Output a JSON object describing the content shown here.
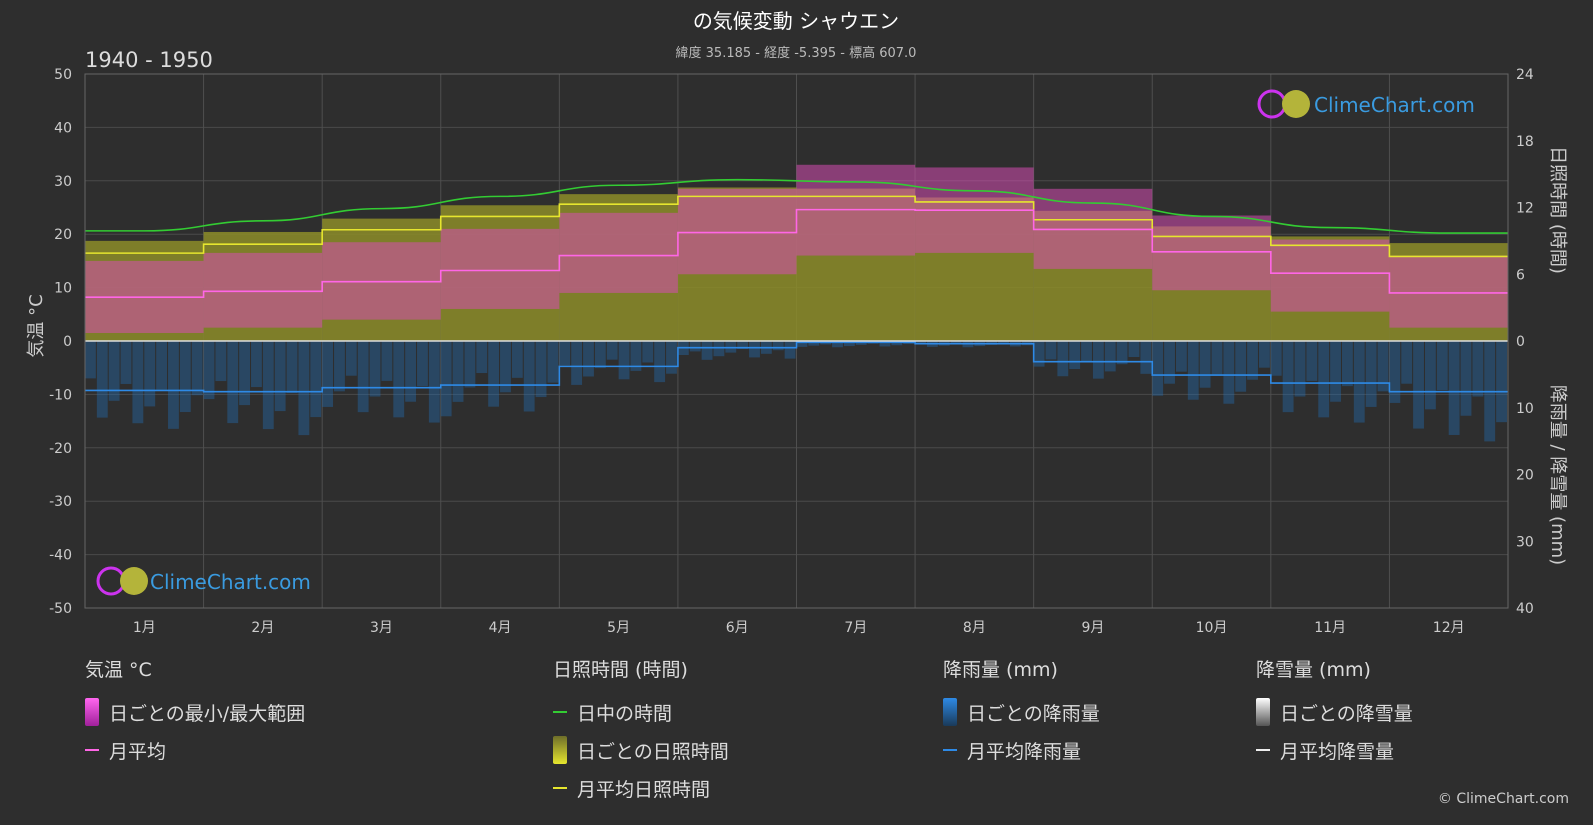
{
  "title": "の気候変動 シャウエン",
  "subtitle": "緯度 35.185 - 経度 -5.395 - 標高 607.0",
  "period": "1940 - 1950",
  "brand": "ClimeChart.com",
  "copyright": "© ClimeChart.com",
  "axes": {
    "left_label": "気温 °C",
    "right_top_label": "日照時間 (時間)",
    "right_bottom_label": "降雨量 / 降雪量 (mm)",
    "temp_ticks": [
      "50",
      "40",
      "30",
      "20",
      "10",
      "0",
      "-10",
      "-20",
      "-30",
      "-40",
      "-50"
    ],
    "sun_ticks": [
      "24",
      "18",
      "12",
      "6",
      "0"
    ],
    "precip_ticks": [
      "10",
      "20",
      "30",
      "40"
    ]
  },
  "colors": {
    "background": "#2e2e2e",
    "daylight": "#33cc33",
    "sunshine_line": "#e6e62e",
    "sunshine_fill": "#8c8c28",
    "temp_range": "#d64db3",
    "temp_mean": "#ff66e6",
    "rain": "#1f75c7",
    "rain_line": "#2e8ae6",
    "snow": "#cccccc",
    "brand": "#3a9be0"
  },
  "legend": {
    "temperature": {
      "title": "気温 °C",
      "items": [
        {
          "label": "日ごとの最小/最大範囲",
          "kind": "box",
          "color": "#e040d0"
        },
        {
          "label": "月平均",
          "kind": "line",
          "color": "#ff66e6"
        }
      ]
    },
    "sunshine": {
      "title": "日照時間 (時間)",
      "items": [
        {
          "label": "日中の時間",
          "kind": "line",
          "color": "#33cc33"
        },
        {
          "label": "日ごとの日照時間",
          "kind": "box",
          "color": "#c8c83a"
        },
        {
          "label": "月平均日照時間",
          "kind": "line",
          "color": "#e6e62e"
        }
      ]
    },
    "rain": {
      "title": "降雨量 (mm)",
      "items": [
        {
          "label": "日ごとの降雨量",
          "kind": "box",
          "color": "#2e8ae6"
        },
        {
          "label": "月平均降雨量",
          "kind": "line",
          "color": "#2e8ae6"
        }
      ]
    },
    "snow": {
      "title": "降雪量 (mm)",
      "items": [
        {
          "label": "日ごとの降雪量",
          "kind": "box",
          "color": "#dddddd"
        },
        {
          "label": "月平均降雪量",
          "kind": "line",
          "color": "#eeeeee"
        }
      ]
    }
  },
  "chart_data": {
    "type": "area",
    "title": "の気候変動 シャウエン",
    "subtitle": "緯度 35.185 - 経度 -5.395 - 標高 607.0",
    "categories": [
      "1月",
      "2月",
      "3月",
      "4月",
      "5月",
      "6月",
      "7月",
      "8月",
      "9月",
      "10月",
      "11月",
      "12月"
    ],
    "temp_ylim": [
      -50,
      50
    ],
    "sun_ylim": [
      0,
      24
    ],
    "precip_ylim": [
      0,
      40
    ],
    "grid": true,
    "series": [
      {
        "name": "日中の時間",
        "axis": "sun",
        "values": [
          9.9,
          10.8,
          11.9,
          13.0,
          14.0,
          14.5,
          14.3,
          13.5,
          12.4,
          11.2,
          10.2,
          9.7
        ]
      },
      {
        "name": "月平均日照時間",
        "axis": "sun",
        "values": [
          7.9,
          8.7,
          10.0,
          11.2,
          12.3,
          13.0,
          13.0,
          12.5,
          10.9,
          9.4,
          8.6,
          7.6
        ]
      },
      {
        "name": "日ごとの日照時間",
        "axis": "sun",
        "values": [
          9.0,
          9.8,
          11.0,
          12.2,
          13.2,
          13.8,
          13.7,
          12.9,
          11.7,
          10.3,
          9.4,
          8.8
        ]
      },
      {
        "name": "月平均",
        "axis": "temp",
        "values": [
          8.2,
          9.3,
          11.1,
          13.2,
          16.0,
          20.3,
          24.6,
          24.5,
          20.9,
          16.7,
          12.7,
          9.0
        ]
      },
      {
        "name": "日ごとの最小/最大範囲",
        "axis": "temp",
        "min": [
          1.5,
          2.5,
          4.0,
          6.0,
          9.0,
          12.5,
          16.0,
          16.5,
          13.5,
          9.5,
          5.5,
          2.5
        ],
        "max": [
          15.0,
          16.5,
          18.5,
          21.0,
          24.0,
          28.5,
          33.0,
          32.5,
          28.5,
          23.5,
          19.0,
          16.0
        ]
      },
      {
        "name": "月平均降雨量",
        "axis": "precip",
        "values": [
          7.4,
          7.6,
          7.0,
          6.6,
          3.8,
          1.0,
          0.2,
          0.4,
          3.1,
          5.1,
          6.3,
          7.6
        ]
      },
      {
        "name": "日ごとの降雨量",
        "axis": "precip",
        "values": [
          14,
          15,
          13,
          12,
          7,
          3,
          1,
          1,
          6,
          10,
          13,
          16
        ]
      },
      {
        "name": "月平均降雪量",
        "axis": "precip",
        "values": [
          0,
          0,
          0,
          0,
          0,
          0,
          0,
          0,
          0,
          0,
          0,
          0
        ]
      }
    ]
  }
}
